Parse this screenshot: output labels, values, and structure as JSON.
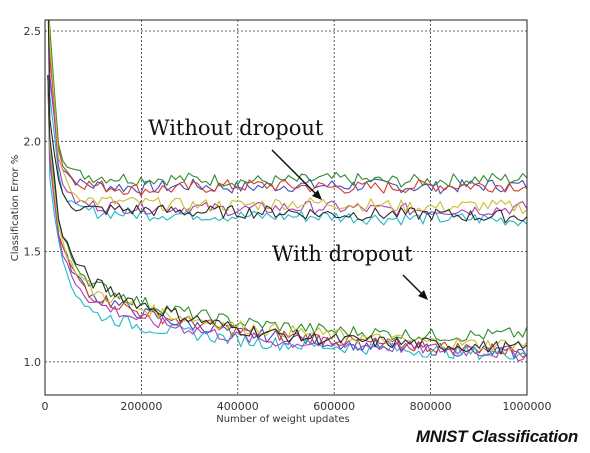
{
  "caption": "MNIST Classification",
  "chart_data": {
    "type": "line",
    "title": "",
    "xlabel": "Number of weight updates",
    "ylabel": "Classification Error %",
    "xlim": [
      0,
      1000000
    ],
    "ylim": [
      0.85,
      2.55
    ],
    "x_ticks": [
      0,
      200000,
      400000,
      600000,
      800000,
      1000000
    ],
    "y_ticks": [
      1.0,
      1.5,
      2.0,
      2.5
    ],
    "x_tick_labels": [
      "0",
      "200000",
      "400000",
      "600000",
      "800000",
      "1000000"
    ],
    "y_tick_labels": [
      "1.0",
      "1.5",
      "2.0",
      "2.5"
    ],
    "grid": true,
    "annotations": [
      {
        "text": "Without dropout",
        "points_to": [
          590000,
          1.72
        ]
      },
      {
        "text": "With dropout",
        "points_to": [
          790000,
          1.2
        ]
      }
    ],
    "series": [
      {
        "group": "Without dropout",
        "color": "#3b4fc4",
        "values": [
          [
            10000,
            2.3
          ],
          [
            30000,
            1.9
          ],
          [
            60000,
            1.82
          ],
          [
            100000,
            1.8
          ],
          [
            200000,
            1.79
          ],
          [
            300000,
            1.8
          ],
          [
            400000,
            1.79
          ],
          [
            500000,
            1.8
          ],
          [
            600000,
            1.8
          ],
          [
            700000,
            1.8
          ],
          [
            800000,
            1.79
          ],
          [
            900000,
            1.8
          ],
          [
            1000000,
            1.8
          ]
        ]
      },
      {
        "group": "Without dropout",
        "color": "#2e8b2e",
        "values": [
          [
            10000,
            2.5
          ],
          [
            30000,
            1.95
          ],
          [
            60000,
            1.86
          ],
          [
            100000,
            1.84
          ],
          [
            200000,
            1.83
          ],
          [
            300000,
            1.83
          ],
          [
            400000,
            1.82
          ],
          [
            500000,
            1.82
          ],
          [
            600000,
            1.83
          ],
          [
            700000,
            1.82
          ],
          [
            800000,
            1.82
          ],
          [
            900000,
            1.83
          ],
          [
            1000000,
            1.83
          ]
        ]
      },
      {
        "group": "Without dropout",
        "color": "#d23b2a",
        "values": [
          [
            10000,
            2.4
          ],
          [
            30000,
            1.92
          ],
          [
            60000,
            1.82
          ],
          [
            100000,
            1.8
          ],
          [
            200000,
            1.78
          ],
          [
            300000,
            1.79
          ],
          [
            400000,
            1.8
          ],
          [
            500000,
            1.8
          ],
          [
            600000,
            1.79
          ],
          [
            700000,
            1.79
          ],
          [
            800000,
            1.8
          ],
          [
            900000,
            1.8
          ],
          [
            1000000,
            1.8
          ]
        ]
      },
      {
        "group": "Without dropout",
        "color": "#22b8c8",
        "values": [
          [
            10000,
            2.2
          ],
          [
            30000,
            1.8
          ],
          [
            60000,
            1.7
          ],
          [
            100000,
            1.68
          ],
          [
            200000,
            1.67
          ],
          [
            300000,
            1.67
          ],
          [
            400000,
            1.66
          ],
          [
            500000,
            1.66
          ],
          [
            600000,
            1.66
          ],
          [
            700000,
            1.65
          ],
          [
            800000,
            1.65
          ],
          [
            900000,
            1.65
          ],
          [
            1000000,
            1.64
          ]
        ]
      },
      {
        "group": "Without dropout",
        "color": "#b03bb8",
        "values": [
          [
            10000,
            2.3
          ],
          [
            30000,
            1.84
          ],
          [
            60000,
            1.73
          ],
          [
            100000,
            1.71
          ],
          [
            200000,
            1.7
          ],
          [
            300000,
            1.7
          ],
          [
            400000,
            1.69
          ],
          [
            500000,
            1.7
          ],
          [
            600000,
            1.7
          ],
          [
            700000,
            1.69
          ],
          [
            800000,
            1.69
          ],
          [
            900000,
            1.69
          ],
          [
            1000000,
            1.7
          ]
        ]
      },
      {
        "group": "Without dropout",
        "color": "#c8c030",
        "values": [
          [
            10000,
            2.45
          ],
          [
            30000,
            1.88
          ],
          [
            60000,
            1.76
          ],
          [
            100000,
            1.73
          ],
          [
            200000,
            1.72
          ],
          [
            300000,
            1.71
          ],
          [
            400000,
            1.71
          ],
          [
            500000,
            1.72
          ],
          [
            600000,
            1.72
          ],
          [
            700000,
            1.71
          ],
          [
            800000,
            1.7
          ],
          [
            900000,
            1.71
          ],
          [
            1000000,
            1.7
          ]
        ]
      },
      {
        "group": "Without dropout",
        "color": "#2a2a2a",
        "values": [
          [
            10000,
            2.1
          ],
          [
            30000,
            1.78
          ],
          [
            60000,
            1.7
          ],
          [
            100000,
            1.69
          ],
          [
            200000,
            1.69
          ],
          [
            300000,
            1.68
          ],
          [
            400000,
            1.68
          ],
          [
            500000,
            1.68
          ],
          [
            600000,
            1.67
          ],
          [
            700000,
            1.67
          ],
          [
            800000,
            1.67
          ],
          [
            900000,
            1.66
          ],
          [
            1000000,
            1.66
          ]
        ]
      },
      {
        "group": "With dropout",
        "color": "#3b4fc4",
        "values": [
          [
            10000,
            1.95
          ],
          [
            30000,
            1.55
          ],
          [
            60000,
            1.4
          ],
          [
            100000,
            1.3
          ],
          [
            200000,
            1.22
          ],
          [
            300000,
            1.17
          ],
          [
            400000,
            1.13
          ],
          [
            500000,
            1.11
          ],
          [
            600000,
            1.09
          ],
          [
            700000,
            1.07
          ],
          [
            800000,
            1.06
          ],
          [
            900000,
            1.05
          ],
          [
            1000000,
            1.04
          ]
        ]
      },
      {
        "group": "With dropout",
        "color": "#2e8b2e",
        "values": [
          [
            10000,
            2.0
          ],
          [
            30000,
            1.6
          ],
          [
            60000,
            1.45
          ],
          [
            100000,
            1.35
          ],
          [
            200000,
            1.27
          ],
          [
            300000,
            1.22
          ],
          [
            400000,
            1.18
          ],
          [
            500000,
            1.16
          ],
          [
            600000,
            1.14
          ],
          [
            700000,
            1.13
          ],
          [
            800000,
            1.12
          ],
          [
            900000,
            1.12
          ],
          [
            1000000,
            1.13
          ]
        ]
      },
      {
        "group": "With dropout",
        "color": "#d23b2a",
        "values": [
          [
            10000,
            1.9
          ],
          [
            30000,
            1.55
          ],
          [
            60000,
            1.4
          ],
          [
            100000,
            1.3
          ],
          [
            200000,
            1.22
          ],
          [
            300000,
            1.18
          ],
          [
            400000,
            1.14
          ],
          [
            500000,
            1.12
          ],
          [
            600000,
            1.1
          ],
          [
            700000,
            1.08
          ],
          [
            800000,
            1.07
          ],
          [
            900000,
            1.06
          ],
          [
            1000000,
            1.05
          ]
        ]
      },
      {
        "group": "With dropout",
        "color": "#22b8c8",
        "values": [
          [
            10000,
            1.85
          ],
          [
            30000,
            1.5
          ],
          [
            60000,
            1.32
          ],
          [
            100000,
            1.22
          ],
          [
            200000,
            1.16
          ],
          [
            300000,
            1.13
          ],
          [
            400000,
            1.1
          ],
          [
            500000,
            1.08
          ],
          [
            600000,
            1.07
          ],
          [
            700000,
            1.06
          ],
          [
            800000,
            1.05
          ],
          [
            900000,
            1.04
          ],
          [
            1000000,
            1.04
          ]
        ]
      },
      {
        "group": "With dropout",
        "color": "#b03bb8",
        "values": [
          [
            10000,
            1.92
          ],
          [
            30000,
            1.52
          ],
          [
            60000,
            1.37
          ],
          [
            100000,
            1.27
          ],
          [
            200000,
            1.19
          ],
          [
            300000,
            1.15
          ],
          [
            400000,
            1.11
          ],
          [
            500000,
            1.09
          ],
          [
            600000,
            1.08
          ],
          [
            700000,
            1.07
          ],
          [
            800000,
            1.06
          ],
          [
            900000,
            1.05
          ],
          [
            1000000,
            1.03
          ]
        ]
      },
      {
        "group": "With dropout",
        "color": "#c8c030",
        "values": [
          [
            10000,
            1.98
          ],
          [
            30000,
            1.57
          ],
          [
            60000,
            1.42
          ],
          [
            100000,
            1.32
          ],
          [
            200000,
            1.24
          ],
          [
            300000,
            1.2
          ],
          [
            400000,
            1.16
          ],
          [
            500000,
            1.14
          ],
          [
            600000,
            1.12
          ],
          [
            700000,
            1.1
          ],
          [
            800000,
            1.09
          ],
          [
            900000,
            1.08
          ],
          [
            1000000,
            1.08
          ]
        ]
      },
      {
        "group": "With dropout",
        "color": "#2a2a2a",
        "values": [
          [
            10000,
            2.02
          ],
          [
            30000,
            1.62
          ],
          [
            60000,
            1.46
          ],
          [
            100000,
            1.36
          ],
          [
            200000,
            1.26
          ],
          [
            300000,
            1.2
          ],
          [
            400000,
            1.15
          ],
          [
            500000,
            1.12
          ],
          [
            600000,
            1.1
          ],
          [
            700000,
            1.09
          ],
          [
            800000,
            1.08
          ],
          [
            900000,
            1.07
          ],
          [
            1000000,
            1.06
          ]
        ]
      }
    ]
  }
}
